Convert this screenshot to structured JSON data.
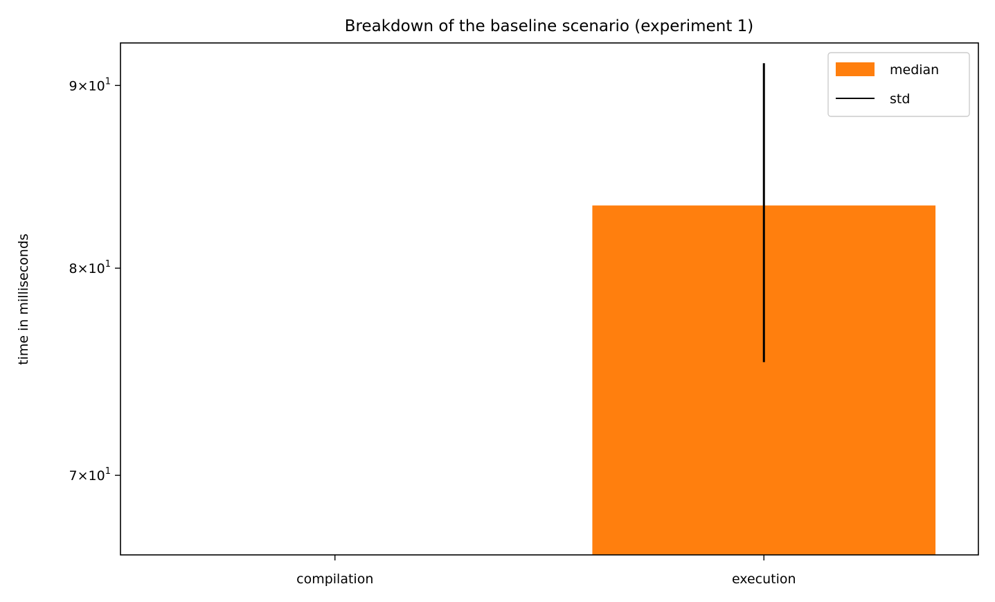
{
  "chart_data": {
    "type": "bar",
    "title": "Breakdown of the baseline scenario (experiment 1)",
    "xlabel": "",
    "ylabel": "time in milliseconds",
    "yscale": "log",
    "ylim": [
      66.5,
      92.5
    ],
    "categories": [
      "compilation",
      "execution"
    ],
    "series": [
      {
        "name": "median",
        "color": "#ff7f0e",
        "values": [
          null,
          83.3
        ],
        "std": [
          null,
          8.0
        ]
      }
    ],
    "std_range": {
      "execution": [
        75.3,
        91.3
      ]
    },
    "yticks": [
      {
        "value": 70,
        "mantissa": "7",
        "base": "10",
        "exp": "1"
      },
      {
        "value": 80,
        "mantissa": "8",
        "base": "10",
        "exp": "1"
      },
      {
        "value": 90,
        "mantissa": "9",
        "base": "10",
        "exp": "1"
      }
    ],
    "legend": {
      "position": "top-right",
      "entries": [
        {
          "label": "median",
          "kind": "patch",
          "color": "#ff7f0e"
        },
        {
          "label": "std",
          "kind": "line",
          "color": "#000000"
        }
      ]
    },
    "grid": false
  }
}
